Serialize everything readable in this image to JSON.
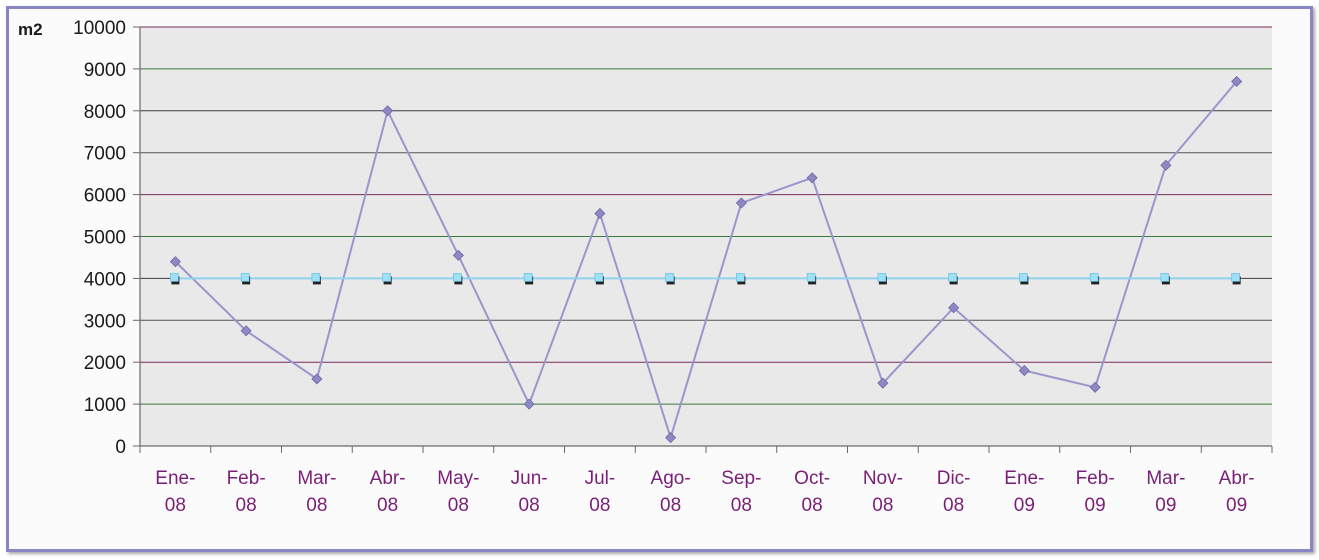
{
  "chart_data": {
    "type": "line",
    "ylabel": "m2",
    "xlabel": "",
    "ylim": [
      0,
      10000
    ],
    "yticks": [
      0,
      1000,
      2000,
      3000,
      4000,
      5000,
      6000,
      7000,
      8000,
      9000,
      10000
    ],
    "grid": true,
    "categories": [
      [
        "Ene-",
        "08"
      ],
      [
        "Feb-",
        "08"
      ],
      [
        "Mar-",
        "08"
      ],
      [
        "Abr-",
        "08"
      ],
      [
        "May-",
        "08"
      ],
      [
        "Jun-",
        "08"
      ],
      [
        "Jul-",
        "08"
      ],
      [
        "Ago-",
        "08"
      ],
      [
        "Sep-",
        "08"
      ],
      [
        "Oct-",
        "08"
      ],
      [
        "Nov-",
        "08"
      ],
      [
        "Dic-",
        "08"
      ],
      [
        "Ene-",
        "09"
      ],
      [
        "Feb-",
        "09"
      ],
      [
        "Mar-",
        "09"
      ],
      [
        "Abr-",
        "09"
      ]
    ],
    "series": [
      {
        "color": "#9a96cc",
        "marker": "diamond",
        "values": [
          4400,
          2750,
          1600,
          8000,
          4550,
          1000,
          5550,
          200,
          5800,
          6400,
          1500,
          3300,
          1800,
          1400,
          6700,
          8700
        ]
      },
      {
        "color": "#8fd3ef",
        "marker": "square",
        "values": [
          4000,
          4000,
          4000,
          4000,
          4000,
          4000,
          4000,
          4000,
          4000,
          4000,
          4000,
          4000,
          4000,
          4000,
          4000,
          4000
        ]
      }
    ]
  }
}
